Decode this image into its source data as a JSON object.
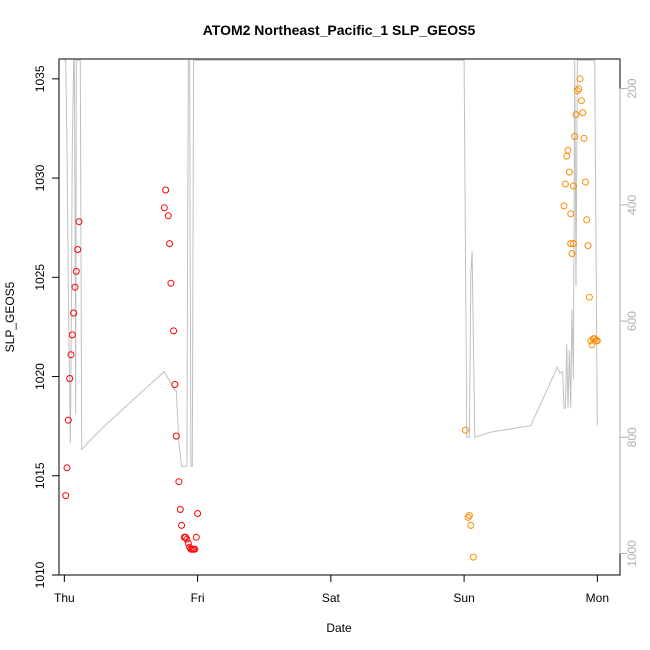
{
  "chart_data": {
    "type": "scatter",
    "title": "ATOM2 Northeast_Pacific_1 SLP_GEOS5",
    "xlabel": "Date",
    "ylabel": "SLP_GEOS5",
    "x_ticks": [
      "Thu",
      "Fri",
      "Sat",
      "Sun",
      "Mon"
    ],
    "xlim": [
      -0.04,
      4.17
    ],
    "ylim": [
      1010,
      1036
    ],
    "y_ticks": [
      1010,
      1015,
      1020,
      1025,
      1030,
      1035
    ],
    "y2lim": [
      1037,
      149
    ],
    "y2_ticks": [
      200,
      400,
      600,
      800,
      1000
    ],
    "y2_color": "#b0b0b0",
    "grid": false,
    "colors": {
      "series_red": "#ff0000",
      "series_orange": "#ff8c00",
      "line": "#c0c0c0"
    },
    "series": [
      {
        "color": "#ff0000",
        "x": [
          0.01,
          0.02,
          0.03,
          0.04,
          0.05,
          0.06,
          0.07,
          0.08,
          0.09,
          0.1,
          0.11,
          0.75,
          0.76,
          0.78,
          0.79,
          0.8,
          0.82,
          0.83,
          0.84,
          0.86,
          0.87,
          0.88,
          0.9,
          0.91,
          0.92,
          0.93,
          0.94,
          0.95,
          0.96,
          0.97,
          0.98,
          0.99,
          1.0
        ],
        "y": [
          1014.0,
          1015.4,
          1017.8,
          1019.9,
          1021.1,
          1022.1,
          1023.2,
          1024.5,
          1025.3,
          1026.4,
          1027.8,
          1028.5,
          1029.4,
          1028.1,
          1026.7,
          1024.7,
          1022.3,
          1019.6,
          1017.0,
          1014.7,
          1013.3,
          1012.5,
          1011.9,
          1011.9,
          1011.8,
          1011.6,
          1011.4,
          1011.3,
          1011.3,
          1011.3,
          1011.3,
          1011.9,
          1013.1
        ]
      },
      {
        "color": "#ff8c00",
        "x": [
          3.01,
          3.03,
          3.04,
          3.05,
          3.07,
          3.75,
          3.76,
          3.77,
          3.78,
          3.79,
          3.8,
          3.8,
          3.81,
          3.82,
          3.82,
          3.83,
          3.84,
          3.85,
          3.86,
          3.87,
          3.88,
          3.89,
          3.9,
          3.91,
          3.92,
          3.93,
          3.94,
          3.95,
          3.96,
          3.97,
          3.98,
          3.99,
          4.0
        ],
        "y": [
          1017.3,
          1012.9,
          1013.0,
          1012.5,
          1010.9,
          1028.6,
          1029.7,
          1031.1,
          1031.4,
          1030.3,
          1028.2,
          1026.7,
          1026.2,
          1026.7,
          1029.6,
          1032.1,
          1033.2,
          1034.4,
          1034.5,
          1035.0,
          1033.9,
          1033.3,
          1032.0,
          1029.8,
          1027.9,
          1026.6,
          1024.0,
          1021.8,
          1021.6,
          1021.9,
          1021.9,
          1021.8,
          1021.8
        ]
      }
    ],
    "background_line": {
      "color": "#c0c0c0",
      "axis": "right",
      "x": [
        0.0,
        0.01,
        0.02,
        0.03,
        0.04,
        0.045,
        0.05,
        0.06,
        0.07,
        0.075,
        0.08,
        0.085,
        0.09,
        0.1,
        0.11,
        0.12,
        0.13,
        0.2,
        0.3,
        0.5,
        0.75,
        0.83,
        0.84,
        0.86,
        0.88,
        0.9,
        0.92,
        0.93,
        0.94,
        0.95,
        0.96,
        0.97,
        0.98,
        0.99,
        1.0,
        1.01,
        1.02,
        1.03,
        1.05,
        3.0,
        3.02,
        3.03,
        3.04,
        3.05,
        3.06,
        3.08,
        3.2,
        3.5,
        3.7,
        3.72,
        3.74,
        3.75,
        3.76,
        3.77,
        3.78,
        3.79,
        3.8,
        3.81,
        3.82,
        3.83,
        3.84,
        3.85,
        3.86,
        3.87,
        3.88,
        3.89,
        3.9,
        3.91,
        3.92,
        3.93,
        3.94,
        3.95,
        3.96,
        3.97,
        3.98,
        4.0
      ],
      "y": [
        151,
        151,
        300,
        540,
        725,
        810,
        690,
        300,
        151,
        151,
        400,
        760,
        151,
        151,
        151,
        151,
        821,
        804,
        781,
        739,
        687,
        720,
        720,
        810,
        850,
        850,
        850,
        151,
        151,
        850,
        850,
        151,
        151,
        151,
        151,
        151,
        151,
        151,
        151,
        151,
        800,
        800,
        800,
        520,
        480,
        800,
        791,
        780,
        679,
        690,
        687,
        750,
        750,
        640,
        750,
        650,
        750,
        580,
        700,
        151,
        540,
        151,
        151,
        151,
        151,
        151,
        151,
        151,
        151,
        151,
        151,
        151,
        151,
        151,
        151,
        779
      ]
    }
  }
}
